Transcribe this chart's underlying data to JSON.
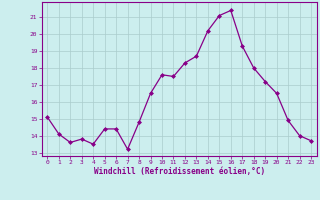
{
  "x": [
    0,
    1,
    2,
    3,
    4,
    5,
    6,
    7,
    8,
    9,
    10,
    11,
    12,
    13,
    14,
    15,
    16,
    17,
    18,
    19,
    20,
    21,
    22,
    23
  ],
  "y": [
    15.1,
    14.1,
    13.6,
    13.8,
    13.5,
    14.4,
    14.4,
    13.2,
    14.8,
    16.5,
    17.6,
    17.5,
    18.3,
    18.7,
    20.2,
    21.1,
    21.4,
    19.3,
    18.0,
    17.2,
    16.5,
    14.9,
    14.0,
    13.7
  ],
  "line_color": "#880088",
  "marker_color": "#880088",
  "bg_color": "#cceeee",
  "grid_color": "#aacccc",
  "xlabel": "Windchill (Refroidissement éolien,°C)",
  "ylabel_ticks": [
    13,
    14,
    15,
    16,
    17,
    18,
    19,
    20,
    21
  ],
  "ylim": [
    12.8,
    21.9
  ],
  "xlim": [
    -0.5,
    23.5
  ],
  "xticks": [
    0,
    1,
    2,
    3,
    4,
    5,
    6,
    7,
    8,
    9,
    10,
    11,
    12,
    13,
    14,
    15,
    16,
    17,
    18,
    19,
    20,
    21,
    22,
    23
  ]
}
